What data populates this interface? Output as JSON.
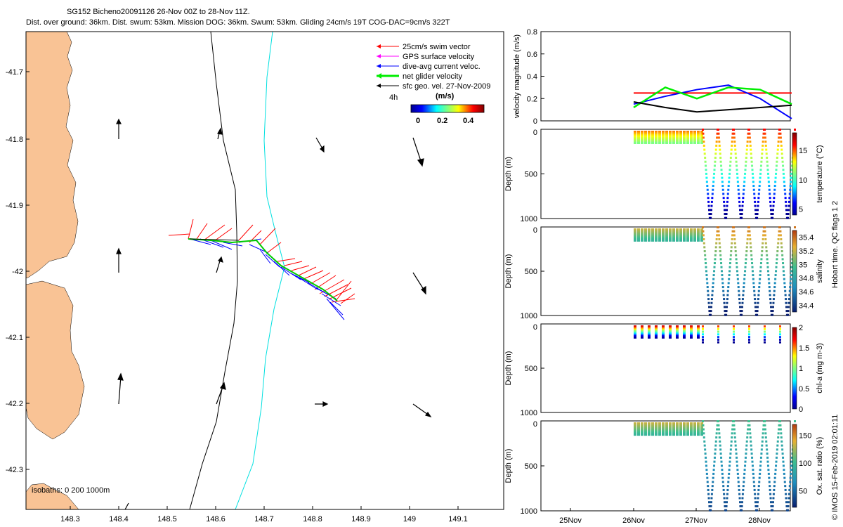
{
  "header": {
    "line1": "SG152 Bicheno20091126 26-Nov 00Z to 28-Nov 11Z.",
    "line2": "Dist. over ground: 36km. Dist. swum: 53km. Mission DOG: 36km. Swum: 53km. Gliding 24cm/s 19T COG-DAC=9cm/s 322T"
  },
  "map": {
    "xticks": [
      "148.3",
      "148.4",
      "148.5",
      "148.6",
      "148.7",
      "148.8",
      "148.9",
      "149",
      "149.1"
    ],
    "yticks": [
      "-41.7",
      "-41.8",
      "-41.9",
      "-42",
      "-42.1",
      "-42.2",
      "-42.3"
    ],
    "isobaths_label": "isobaths: 0   200  1000m",
    "legend": [
      {
        "label": "25cm/s swim vector",
        "color": "#ff0000"
      },
      {
        "label": "GPS surface velocity",
        "color": "#ff00ff"
      },
      {
        "label": "dive-avg current veloc.",
        "color": "#0000ff"
      },
      {
        "label": "net glider velocity",
        "color": "#00ee00"
      },
      {
        "label": "sfc geo. vel. 27-Nov-2009",
        "color": "#000000"
      }
    ],
    "colorbar": {
      "title": "(m/s)",
      "side_label": "4h",
      "ticks": [
        "0",
        "0.2",
        "0.4"
      ]
    }
  },
  "chart_data": [
    {
      "type": "line",
      "ylabel": "velocity magnitude (m/s)",
      "ylim": [
        0,
        0.8
      ],
      "yticks": [
        "0",
        "0.2",
        "0.4",
        "0.6",
        "0.8"
      ],
      "x": [
        "26Nov 00:00",
        "26Nov 12:00",
        "27Nov 00:00",
        "27Nov 12:00",
        "28Nov 00:00",
        "28Nov 12:00"
      ],
      "series": [
        {
          "color": "#ff0000",
          "values": [
            0.25,
            0.25,
            0.25,
            0.25,
            0.25,
            0.25
          ]
        },
        {
          "color": "#0000ff",
          "values": [
            0.15,
            0.22,
            0.28,
            0.32,
            0.2,
            0.02
          ]
        },
        {
          "color": "#00ee00",
          "values": [
            0.12,
            0.3,
            0.2,
            0.3,
            0.28,
            0.15
          ]
        },
        {
          "color": "#000000",
          "values": [
            0.17,
            0.12,
            0.08,
            0.1,
            0.12,
            0.14
          ]
        }
      ]
    },
    {
      "type": "scatter",
      "ylabel": "Depth (m)",
      "yticks": [
        "0",
        "500",
        "1000"
      ],
      "cbar_label": "temperature (°C)",
      "cbar_ticks": [
        "5",
        "10",
        "15"
      ],
      "cbar_range": [
        4,
        18
      ]
    },
    {
      "type": "scatter",
      "ylabel": "Depth (m)",
      "yticks": [
        "0",
        "500",
        "1000"
      ],
      "cbar_label": "salinity",
      "cbar_ticks": [
        "34.4",
        "34.6",
        "34.8",
        "35",
        "35.2",
        "35.4"
      ],
      "cbar_range": [
        34.3,
        35.5
      ]
    },
    {
      "type": "scatter",
      "ylabel": "Depth (m)",
      "yticks": [
        "0",
        "500",
        "1000"
      ],
      "cbar_label": "chl-a (mg m-3)",
      "cbar_ticks": [
        "0",
        "0.5",
        "1",
        "1.5",
        "2"
      ],
      "cbar_range": [
        0,
        2
      ]
    },
    {
      "type": "scatter",
      "ylabel": "Depth (m)",
      "yticks": [
        "0",
        "500",
        "1000"
      ],
      "cbar_label": "Ox. sat. ratio (%)",
      "cbar_ticks": [
        "50",
        "100",
        "150"
      ],
      "cbar_range": [
        20,
        170
      ]
    }
  ],
  "time_axis": {
    "ticks": [
      "25Nov",
      "26Nov",
      "27Nov",
      "28Nov"
    ]
  },
  "side_note": {
    "qc": "Hobart time. QC flags 1  2",
    "imos": "© IMOS 15-Feb-2019 02:01:11"
  }
}
